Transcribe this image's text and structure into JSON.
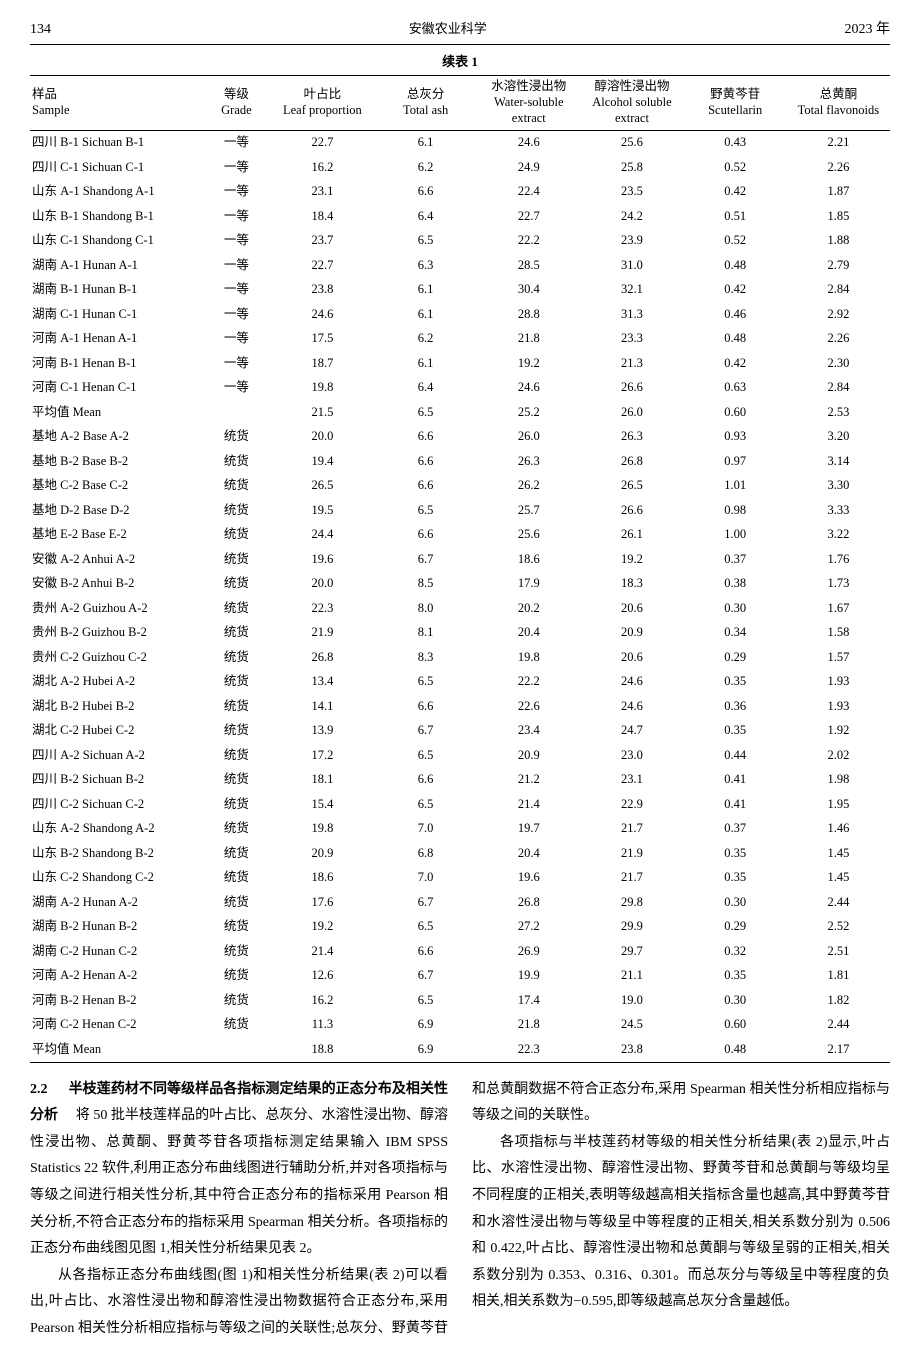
{
  "header": {
    "page_number": "134",
    "journal_name": "安徽农业科学",
    "year": "2023 年"
  },
  "table": {
    "type": "table",
    "caption": "续表 1",
    "caption_fontsize": 13,
    "font_family": "SimSun",
    "cell_fontsize": 12.5,
    "border_color": "#000000",
    "background_color": "#ffffff",
    "text_color": "#000000",
    "columns": [
      {
        "key": "sample",
        "cn": "样品",
        "en": "Sample",
        "align": "left",
        "width_pct": 20
      },
      {
        "key": "grade",
        "cn": "等级",
        "en": "Grade",
        "align": "center",
        "width_pct": 8
      },
      {
        "key": "leaf",
        "cn": "叶占比",
        "en": "Leaf proportion",
        "align": "center",
        "width_pct": 12
      },
      {
        "key": "ash",
        "cn": "总灰分",
        "en": "Total ash",
        "align": "center",
        "width_pct": 12
      },
      {
        "key": "water",
        "cn": "水溶性浸出物",
        "en": "Water-soluble extract",
        "align": "center",
        "width_pct": 12
      },
      {
        "key": "alcohol",
        "cn": "醇溶性浸出物",
        "en": "Alcohol soluble extract",
        "align": "center",
        "width_pct": 12
      },
      {
        "key": "scutellarin",
        "cn": "野黄芩苷",
        "en": "Scutellarin",
        "align": "center",
        "width_pct": 12
      },
      {
        "key": "flavonoids",
        "cn": "总黄酮",
        "en": "Total flavonoids",
        "align": "center",
        "width_pct": 12
      }
    ],
    "rows": [
      [
        "四川 B-1 Sichuan B-1",
        "一等",
        "22.7",
        "6.1",
        "24.6",
        "25.6",
        "0.43",
        "2.21"
      ],
      [
        "四川 C-1 Sichuan C-1",
        "一等",
        "16.2",
        "6.2",
        "24.9",
        "25.8",
        "0.52",
        "2.26"
      ],
      [
        "山东 A-1 Shandong A-1",
        "一等",
        "23.1",
        "6.6",
        "22.4",
        "23.5",
        "0.42",
        "1.87"
      ],
      [
        "山东 B-1 Shandong B-1",
        "一等",
        "18.4",
        "6.4",
        "22.7",
        "24.2",
        "0.51",
        "1.85"
      ],
      [
        "山东 C-1 Shandong C-1",
        "一等",
        "23.7",
        "6.5",
        "22.2",
        "23.9",
        "0.52",
        "1.88"
      ],
      [
        "湖南 A-1 Hunan A-1",
        "一等",
        "22.7",
        "6.3",
        "28.5",
        "31.0",
        "0.48",
        "2.79"
      ],
      [
        "湖南 B-1 Hunan B-1",
        "一等",
        "23.8",
        "6.1",
        "30.4",
        "32.1",
        "0.42",
        "2.84"
      ],
      [
        "湖南 C-1 Hunan C-1",
        "一等",
        "24.6",
        "6.1",
        "28.8",
        "31.3",
        "0.46",
        "2.92"
      ],
      [
        "河南 A-1 Henan A-1",
        "一等",
        "17.5",
        "6.2",
        "21.8",
        "23.3",
        "0.48",
        "2.26"
      ],
      [
        "河南 B-1 Henan B-1",
        "一等",
        "18.7",
        "6.1",
        "19.2",
        "21.3",
        "0.42",
        "2.30"
      ],
      [
        "河南 C-1 Henan C-1",
        "一等",
        "19.8",
        "6.4",
        "24.6",
        "26.6",
        "0.63",
        "2.84"
      ],
      [
        "平均值 Mean",
        "",
        "21.5",
        "6.5",
        "25.2",
        "26.0",
        "0.60",
        "2.53"
      ],
      [
        "基地 A-2 Base A-2",
        "统货",
        "20.0",
        "6.6",
        "26.0",
        "26.3",
        "0.93",
        "3.20"
      ],
      [
        "基地 B-2 Base B-2",
        "统货",
        "19.4",
        "6.6",
        "26.3",
        "26.8",
        "0.97",
        "3.14"
      ],
      [
        "基地 C-2 Base C-2",
        "统货",
        "26.5",
        "6.6",
        "26.2",
        "26.5",
        "1.01",
        "3.30"
      ],
      [
        "基地 D-2 Base D-2",
        "统货",
        "19.5",
        "6.5",
        "25.7",
        "26.6",
        "0.98",
        "3.33"
      ],
      [
        "基地 E-2 Base E-2",
        "统货",
        "24.4",
        "6.6",
        "25.6",
        "26.1",
        "1.00",
        "3.22"
      ],
      [
        "安徽 A-2 Anhui A-2",
        "统货",
        "19.6",
        "6.7",
        "18.6",
        "19.2",
        "0.37",
        "1.76"
      ],
      [
        "安徽 B-2 Anhui B-2",
        "统货",
        "20.0",
        "8.5",
        "17.9",
        "18.3",
        "0.38",
        "1.73"
      ],
      [
        "贵州 A-2 Guizhou A-2",
        "统货",
        "22.3",
        "8.0",
        "20.2",
        "20.6",
        "0.30",
        "1.67"
      ],
      [
        "贵州 B-2 Guizhou B-2",
        "统货",
        "21.9",
        "8.1",
        "20.4",
        "20.9",
        "0.34",
        "1.58"
      ],
      [
        "贵州 C-2 Guizhou C-2",
        "统货",
        "26.8",
        "8.3",
        "19.8",
        "20.6",
        "0.29",
        "1.57"
      ],
      [
        "湖北 A-2 Hubei A-2",
        "统货",
        "13.4",
        "6.5",
        "22.2",
        "24.6",
        "0.35",
        "1.93"
      ],
      [
        "湖北 B-2 Hubei B-2",
        "统货",
        "14.1",
        "6.6",
        "22.6",
        "24.6",
        "0.36",
        "1.93"
      ],
      [
        "湖北 C-2 Hubei C-2",
        "统货",
        "13.9",
        "6.7",
        "23.4",
        "24.7",
        "0.35",
        "1.92"
      ],
      [
        "四川 A-2 Sichuan A-2",
        "统货",
        "17.2",
        "6.5",
        "20.9",
        "23.0",
        "0.44",
        "2.02"
      ],
      [
        "四川 B-2 Sichuan B-2",
        "统货",
        "18.1",
        "6.6",
        "21.2",
        "23.1",
        "0.41",
        "1.98"
      ],
      [
        "四川 C-2 Sichuan C-2",
        "统货",
        "15.4",
        "6.5",
        "21.4",
        "22.9",
        "0.41",
        "1.95"
      ],
      [
        "山东 A-2 Shandong A-2",
        "统货",
        "19.8",
        "7.0",
        "19.7",
        "21.7",
        "0.37",
        "1.46"
      ],
      [
        "山东 B-2 Shandong B-2",
        "统货",
        "20.9",
        "6.8",
        "20.4",
        "21.9",
        "0.35",
        "1.45"
      ],
      [
        "山东 C-2 Shandong C-2",
        "统货",
        "18.6",
        "7.0",
        "19.6",
        "21.7",
        "0.35",
        "1.45"
      ],
      [
        "湖南 A-2 Hunan A-2",
        "统货",
        "17.6",
        "6.7",
        "26.8",
        "29.8",
        "0.30",
        "2.44"
      ],
      [
        "湖南 B-2 Hunan B-2",
        "统货",
        "19.2",
        "6.5",
        "27.2",
        "29.9",
        "0.29",
        "2.52"
      ],
      [
        "湖南 C-2 Hunan C-2",
        "统货",
        "21.4",
        "6.6",
        "26.9",
        "29.7",
        "0.32",
        "2.51"
      ],
      [
        "河南 A-2 Henan A-2",
        "统货",
        "12.6",
        "6.7",
        "19.9",
        "21.1",
        "0.35",
        "1.81"
      ],
      [
        "河南 B-2 Henan B-2",
        "统货",
        "16.2",
        "6.5",
        "17.4",
        "19.0",
        "0.30",
        "1.82"
      ],
      [
        "河南 C-2 Henan C-2",
        "统货",
        "11.3",
        "6.9",
        "21.8",
        "24.5",
        "0.60",
        "2.44"
      ],
      [
        "平均值 Mean",
        "",
        "18.8",
        "6.9",
        "22.3",
        "23.8",
        "0.48",
        "2.17"
      ]
    ]
  },
  "body": {
    "section_number": "2.2",
    "section_title": "半枝莲药材不同等级样品各指标测定结果的正态分布及相关性分析",
    "p1_rest": "　将 50 批半枝莲样品的叶占比、总灰分、水溶性浸出物、醇溶性浸出物、总黄酮、野黄芩苷各项指标测定结果输入 IBM SPSS Statistics 22 软件,利用正态分布曲线图进行辅助分析,并对各项指标与等级之间进行相关性分析,其中符合正态分布的指标采用 Pearson 相关分析,不符合正态分布的指标采用 Spearman 相关分析。各项指标的正态分布曲线图见图 1,相关性分析结果见表 2。",
    "p2": "从各指标正态分布曲线图(图 1)和相关性分析结果(表 2)可以看出,叶占比、水溶性浸出物和醇溶性浸出物数据符合正态分布,采用 Pearson 相关性分析相应指标与等级之间的关联性;总灰分、野黄芩苷和总黄酮数据不符合正态分布,采用 Spearman 相关性分析相应指标与等级之间的关联性。",
    "p3": "各项指标与半枝莲药材等级的相关性分析结果(表 2)显示,叶占比、水溶性浸出物、醇溶性浸出物、野黄芩苷和总黄酮与等级均呈不同程度的正相关,表明等级越高相关指标含量也越高,其中野黄芩苷和水溶性浸出物与等级呈中等程度的正相关,相关系数分别为 0.506 和 0.422,叶占比、醇溶性浸出物和总黄酮与等级呈弱的正相关,相关系数分别为 0.353、0.316、0.301。而总灰分与等级呈中等程度的负相关,相关系数为−0.595,即等级越高总灰分含量越低。"
  }
}
